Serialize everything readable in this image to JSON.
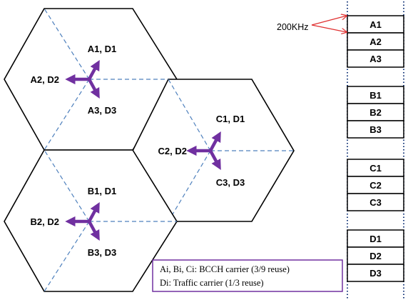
{
  "colors": {
    "arrow": "#7030A0",
    "dashed_line": "#4F81BD",
    "note_border": "#7030A0",
    "pointer": "#E03030",
    "stroke": "#000000"
  },
  "cells": [
    {
      "id": "A",
      "sector_labels": {
        "upper": "A1, D1",
        "left": "A2, D2",
        "lower": "A3, D3"
      }
    },
    {
      "id": "C",
      "sector_labels": {
        "upper": "C1, D1",
        "left": "C2, D2",
        "lower": "C3, D3"
      }
    },
    {
      "id": "B",
      "sector_labels": {
        "upper": "B1, D1",
        "left": "B2, D2",
        "lower": "B3, D3"
      }
    }
  ],
  "carrier_label": "200KHz",
  "carrier_column": {
    "groups": [
      [
        "A1",
        "A2",
        "A3"
      ],
      [
        "B1",
        "B2",
        "B3"
      ],
      [
        "C1",
        "C2",
        "C3"
      ],
      [
        "D1",
        "D2",
        "D3"
      ]
    ]
  },
  "note": {
    "line1": "Ai, Bi, Ci: BCCH carrier (3/9 reuse)",
    "line2": "Di: Traffic carrier (1/3 reuse)"
  }
}
